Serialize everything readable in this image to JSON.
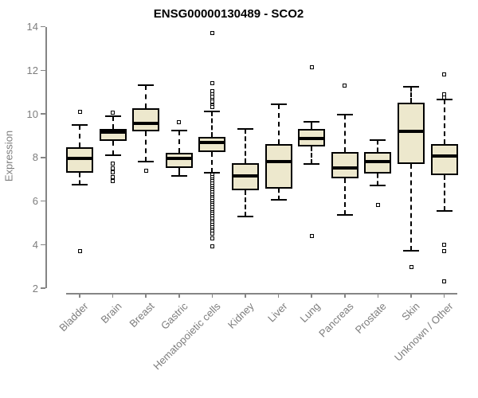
{
  "colors": {
    "box_fill": "#EDE8CD",
    "box_border": "#000000",
    "median": "#000000",
    "axis": "#858585",
    "axis_text": "#7d7d7d",
    "title_text": "#000000",
    "background": "#ffffff"
  },
  "chart_data": {
    "type": "boxplot",
    "title": "ENSG00000130489 - SCO2",
    "xlabel": "",
    "ylabel": "Expression",
    "ylim": [
      2,
      14
    ],
    "yticks": [
      2,
      4,
      6,
      8,
      10,
      12,
      14
    ],
    "grid": false,
    "legend": false,
    "categories": [
      "Bladder",
      "Brain",
      "Breast",
      "Gastric",
      "Hematopoietic cells",
      "Kidney",
      "Liver",
      "Lung",
      "Pancreas",
      "Prostate",
      "Skin",
      "Unknown / Other"
    ],
    "series": [
      {
        "name": "Bladder",
        "whisker_low": 6.75,
        "q1": 7.3,
        "median": 7.95,
        "q3": 8.45,
        "whisker_high": 9.5,
        "outliers": [
          10.1,
          3.7
        ]
      },
      {
        "name": "Brain",
        "whisker_low": 8.1,
        "q1": 8.75,
        "median": 9.15,
        "q3": 9.3,
        "whisker_high": 9.9,
        "outliers": [
          10.05,
          7.7,
          7.5,
          7.3,
          7.1,
          6.9
        ]
      },
      {
        "name": "Breast",
        "whisker_low": 7.8,
        "q1": 9.2,
        "median": 9.55,
        "q3": 10.25,
        "whisker_high": 11.3,
        "outliers": [
          7.4
        ]
      },
      {
        "name": "Gastric",
        "whisker_low": 7.15,
        "q1": 7.5,
        "median": 7.95,
        "q3": 8.2,
        "whisker_high": 9.25,
        "outliers": [
          9.6
        ]
      },
      {
        "name": "Hematopoietic cells",
        "whisker_low": 7.3,
        "q1": 8.25,
        "median": 8.7,
        "q3": 8.95,
        "whisker_high": 10.1,
        "outliers": [
          13.7,
          11.4,
          11.05,
          10.9,
          10.8,
          10.65,
          10.55,
          10.4,
          10.3,
          7.2,
          7.1,
          7.0,
          6.9,
          6.8,
          6.7,
          6.6,
          6.5,
          6.4,
          6.3,
          6.2,
          6.1,
          6.0,
          5.9,
          5.8,
          5.7,
          5.6,
          5.5,
          5.4,
          5.3,
          5.2,
          5.1,
          5.0,
          4.9,
          4.8,
          4.7,
          4.6,
          4.5,
          4.3,
          3.9
        ]
      },
      {
        "name": "Kidney",
        "whisker_low": 5.3,
        "q1": 6.5,
        "median": 7.15,
        "q3": 7.75,
        "whisker_high": 9.3,
        "outliers": []
      },
      {
        "name": "Liver",
        "whisker_low": 6.05,
        "q1": 6.55,
        "median": 7.8,
        "q3": 8.6,
        "whisker_high": 10.45,
        "outliers": []
      },
      {
        "name": "Lung",
        "whisker_low": 7.7,
        "q1": 8.5,
        "median": 8.85,
        "q3": 9.3,
        "whisker_high": 9.65,
        "outliers": [
          12.15,
          4.4
        ]
      },
      {
        "name": "Pancreas",
        "whisker_low": 5.35,
        "q1": 7.05,
        "median": 7.5,
        "q3": 8.25,
        "whisker_high": 9.95,
        "outliers": [
          11.3
        ]
      },
      {
        "name": "Prostate",
        "whisker_low": 6.7,
        "q1": 7.25,
        "median": 7.8,
        "q3": 8.25,
        "whisker_high": 8.8,
        "outliers": [
          5.8
        ]
      },
      {
        "name": "Skin",
        "whisker_low": 3.7,
        "q1": 7.7,
        "median": 9.2,
        "q3": 10.5,
        "whisker_high": 11.25,
        "outliers": [
          2.95
        ]
      },
      {
        "name": "Unknown / Other",
        "whisker_low": 5.55,
        "q1": 7.2,
        "median": 8.05,
        "q3": 8.6,
        "whisker_high": 10.65,
        "outliers": [
          11.8,
          10.9,
          10.75,
          4.0,
          3.7,
          2.3
        ]
      }
    ]
  }
}
